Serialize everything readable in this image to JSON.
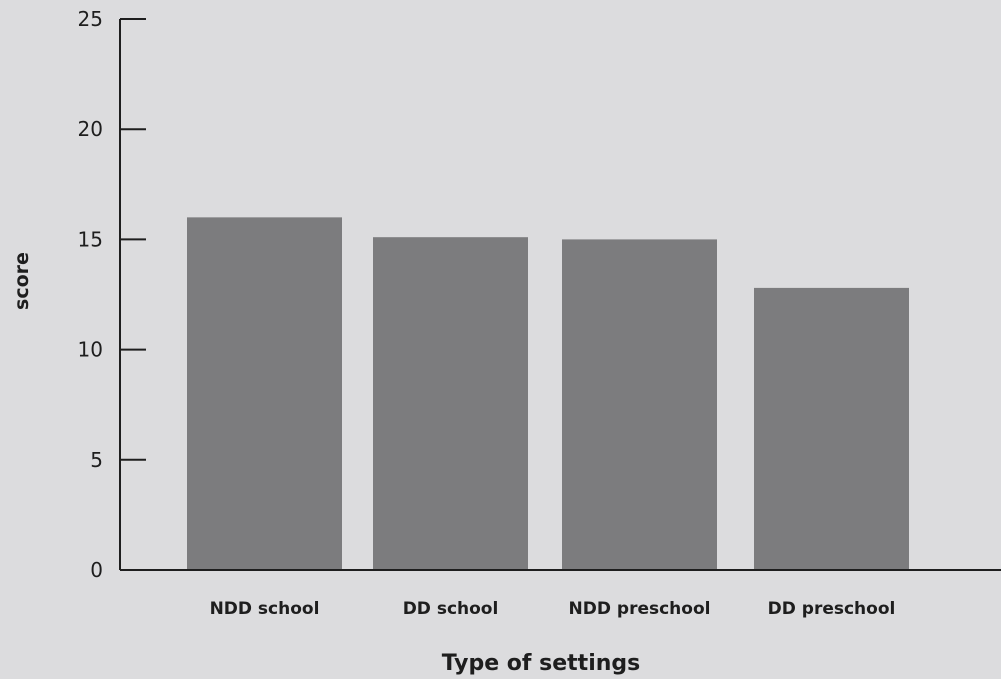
{
  "chart_data": {
    "type": "bar",
    "categories": [
      "NDD school",
      "DD school",
      "NDD preschool",
      "DD preschool"
    ],
    "values": [
      16,
      15.1,
      15,
      12.8
    ],
    "xlabel": "Type of settings",
    "ylabel": "score",
    "ylim": [
      0,
      25
    ],
    "yticks": [
      0,
      5,
      10,
      15,
      20,
      25
    ],
    "grid": false,
    "colors": {
      "bar": "#7c7c7e",
      "axis": "#1e1e1e",
      "background": "#dcdcde"
    }
  }
}
